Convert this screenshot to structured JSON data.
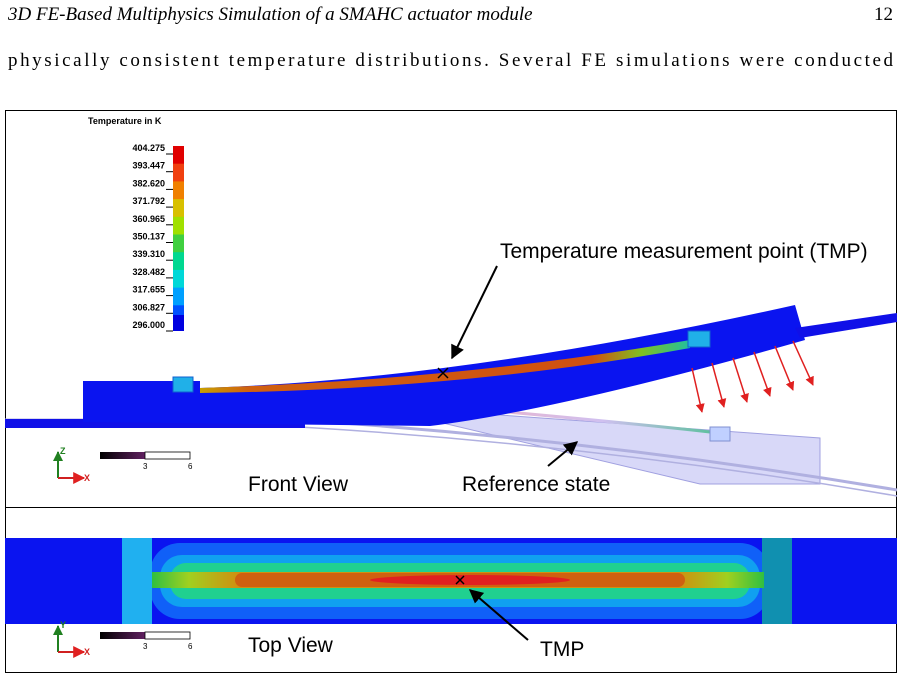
{
  "header": {
    "title": "3D FE-Based Multiphysics Simulation of a SMAHC actuator module",
    "page": "12"
  },
  "body": {
    "text": "physically consistent temperature distributions. Several FE simulations were conducted"
  },
  "figure": {
    "legend": {
      "title": "Temperature in K",
      "levels": [
        "404.275",
        "393.447",
        "382.620",
        "371.792",
        "360.965",
        "350.137",
        "339.310",
        "328.482",
        "317.655",
        "306.827",
        "296.000"
      ]
    },
    "front_view": {
      "label": "Front View",
      "tmp_annotation": "Temperature measurement point (TMP)",
      "reference_annotation": "Reference state",
      "scale_bar": {
        "ticks": [
          "3",
          "6"
        ]
      },
      "axes": {
        "vertical": "Z",
        "horizontal": "X"
      }
    },
    "top_view": {
      "label": "Top View",
      "tmp_annotation": "TMP",
      "scale_bar": {
        "ticks": [
          "3",
          "6"
        ]
      },
      "axes": {
        "vertical": "Y",
        "horizontal": "X"
      }
    }
  }
}
